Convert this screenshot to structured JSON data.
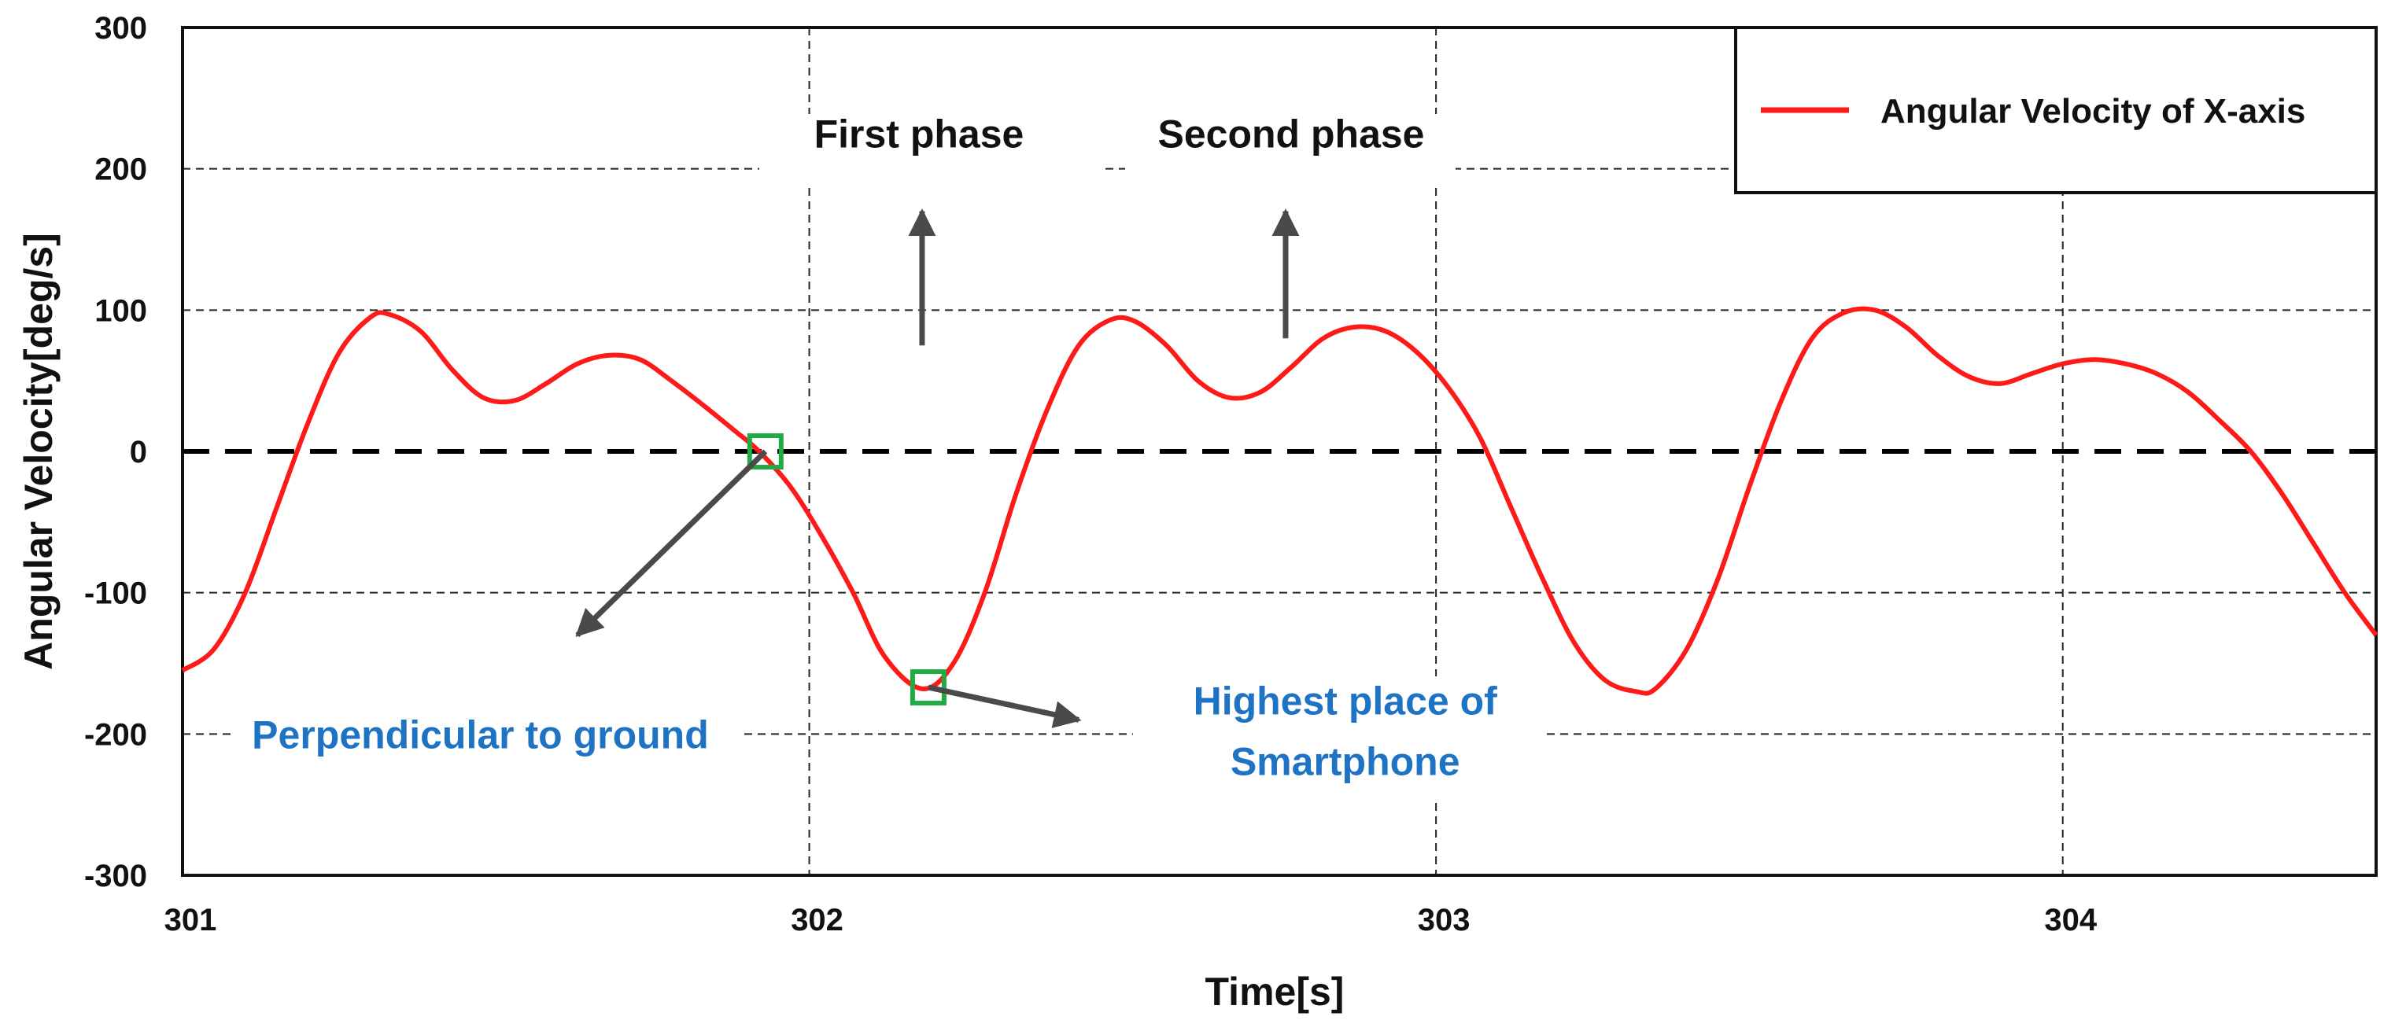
{
  "chart_data": {
    "type": "line",
    "title": "",
    "xlabel": "Time[s]",
    "ylabel": "Angular Velocity[deg/s]",
    "xlim": [
      301,
      304.5
    ],
    "ylim": [
      -300,
      300
    ],
    "x_ticks": [
      301,
      302,
      303,
      304
    ],
    "y_ticks": [
      300,
      200,
      100,
      0,
      -100,
      -200,
      -300
    ],
    "x_tick_labels": [
      "301",
      "302",
      "303",
      "304"
    ],
    "y_tick_labels": [
      "300",
      "200",
      "100",
      "0",
      "-100",
      "-200",
      "-300"
    ],
    "grid": true,
    "legend": {
      "position": "top-right",
      "entries": [
        "Angular Velocity of X-axis"
      ]
    },
    "series": [
      {
        "name": "Angular Velocity of X-axis",
        "color": "#ff1a1a",
        "x": [
          301.0,
          301.05,
          301.1,
          301.15,
          301.2,
          301.25,
          301.3,
          301.33,
          301.38,
          301.43,
          301.48,
          301.53,
          301.58,
          301.63,
          301.68,
          301.73,
          301.78,
          301.83,
          301.88,
          301.92,
          301.97,
          302.02,
          302.07,
          302.12,
          302.18,
          302.23,
          302.28,
          302.33,
          302.38,
          302.43,
          302.48,
          302.52,
          302.57,
          302.62,
          302.67,
          302.72,
          302.77,
          302.82,
          302.87,
          302.92,
          302.97,
          303.02,
          303.07,
          303.12,
          303.17,
          303.22,
          303.27,
          303.32,
          303.35,
          303.4,
          303.45,
          303.5,
          303.55,
          303.6,
          303.65,
          303.7,
          303.75,
          303.8,
          303.85,
          303.9,
          303.95,
          304.0,
          304.05,
          304.1,
          304.15,
          304.2,
          304.25,
          304.3,
          304.35,
          304.4,
          304.45,
          304.5
        ],
        "values": [
          -155,
          -140,
          -100,
          -40,
          20,
          70,
          95,
          97,
          85,
          58,
          38,
          36,
          48,
          62,
          68,
          65,
          50,
          33,
          15,
          0,
          -25,
          -60,
          -100,
          -145,
          -168,
          -150,
          -100,
          -30,
          30,
          75,
          93,
          92,
          75,
          50,
          38,
          42,
          60,
          80,
          88,
          85,
          70,
          45,
          10,
          -40,
          -90,
          -135,
          -162,
          -170,
          -168,
          -140,
          -90,
          -25,
          35,
          80,
          98,
          100,
          88,
          68,
          53,
          48,
          55,
          62,
          65,
          62,
          55,
          42,
          22,
          0,
          -30,
          -65,
          -100,
          -130
        ]
      },
      {
        "name": "zero line",
        "color": "#000000",
        "x": [
          301.0,
          304.5
        ],
        "values": [
          0,
          0
        ]
      }
    ],
    "annotations": [
      {
        "text": "First phase",
        "x": 302.18,
        "y": 215,
        "arrow_to": [
          302.18,
          170
        ],
        "arrow_from": [
          302.18,
          75
        ]
      },
      {
        "text": "Second phase",
        "x": 302.75,
        "y": 215,
        "arrow_to": [
          302.76,
          170
        ],
        "arrow_from": [
          302.76,
          80
        ]
      },
      {
        "text": "Perpendicular to ground",
        "x": 301.45,
        "y": -200,
        "marker": [
          301.93,
          0
        ],
        "arrow_from": [
          301.93,
          0
        ],
        "arrow_to": [
          301.63,
          -130
        ]
      },
      {
        "text_lines": [
          "Highest place of",
          "Smartphone"
        ],
        "x": 302.84,
        "y": -200,
        "marker": [
          302.19,
          -167
        ],
        "arrow_from": [
          302.19,
          -167
        ],
        "arrow_to": [
          302.43,
          -190
        ]
      }
    ]
  },
  "colors": {
    "series": "#ff1a1a",
    "annotation_blue": "#1f73c4",
    "marker_green": "#22aa44",
    "arrow": "#4a4a4a"
  }
}
